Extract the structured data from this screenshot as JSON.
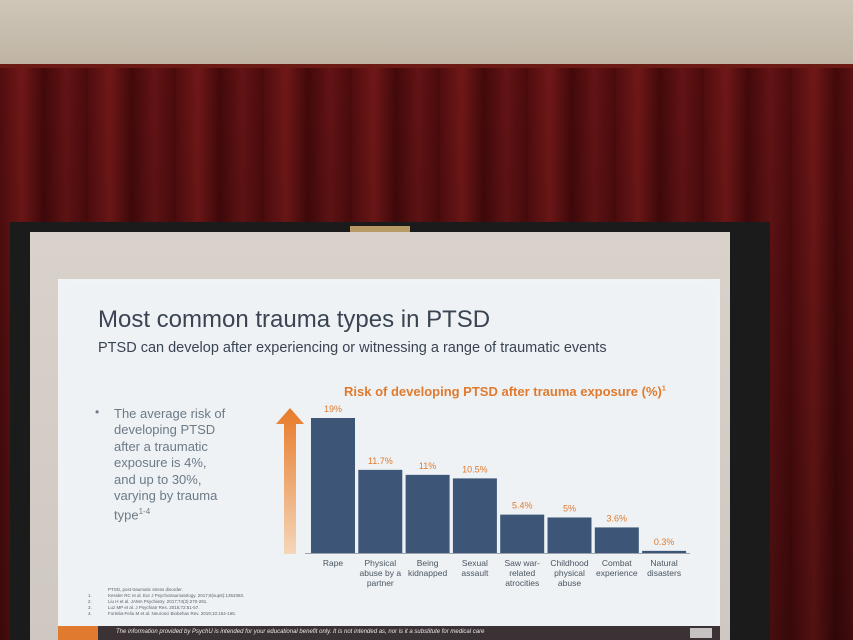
{
  "slide": {
    "title": "Most common trauma types in PTSD",
    "subtitle": "PTSD can develop after experiencing or witnessing a range of traumatic events",
    "bullet_main": "The average risk of developing PTSD after a traumatic exposure is 4%, and up to 30%, varying by trauma type",
    "bullet_sup": "1-4"
  },
  "chart_data": {
    "type": "bar",
    "title": "Risk of developing PTSD after trauma exposure (%)",
    "title_sup": "1",
    "categories": [
      [
        "Rape"
      ],
      [
        "Physical",
        "abuse by a",
        "partner"
      ],
      [
        "Being",
        "kidnapped"
      ],
      [
        "Sexual",
        "assault"
      ],
      [
        "Saw war-",
        "related",
        "atrocities"
      ],
      [
        "Childhood",
        "physical",
        "abuse"
      ],
      [
        "Combat",
        "experience"
      ],
      [
        "Natural",
        "disasters"
      ]
    ],
    "values": [
      19,
      11.7,
      11,
      10.5,
      5.4,
      5,
      3.6,
      0.3
    ],
    "labels": [
      "19%",
      "11.7%",
      "11%",
      "10.5%",
      "5.4%",
      "5%",
      "3.6%",
      "0.3%"
    ],
    "ylim": [
      0,
      19
    ],
    "bar_color": "#3d5678",
    "label_color": "#e07a2e",
    "arrow_color": "#e87a2a"
  },
  "references": [
    {
      "num": "",
      "text": "PTSD, post-traumatic stress disorder."
    },
    {
      "num": "1.",
      "text": "Kessler RC et al. Eur J Psychotraumatology. 2017;8(sup5):1353383."
    },
    {
      "num": "2.",
      "text": "Liu H et al. JAMA Psychiatry. 2017;74(3):270-281."
    },
    {
      "num": "3.",
      "text": "Luz MP et al. J Psychiatr Res. 2016;72:51-57."
    },
    {
      "num": "4.",
      "text": "Fortelia-Feliu M et al. Neurosci Biobehav Rev. 2019;10:154-165."
    }
  ],
  "footer": {
    "text": "The information provided by PsychU is intended for your educational benefit only. It is not intended as, nor is it a substitute for medical care"
  }
}
